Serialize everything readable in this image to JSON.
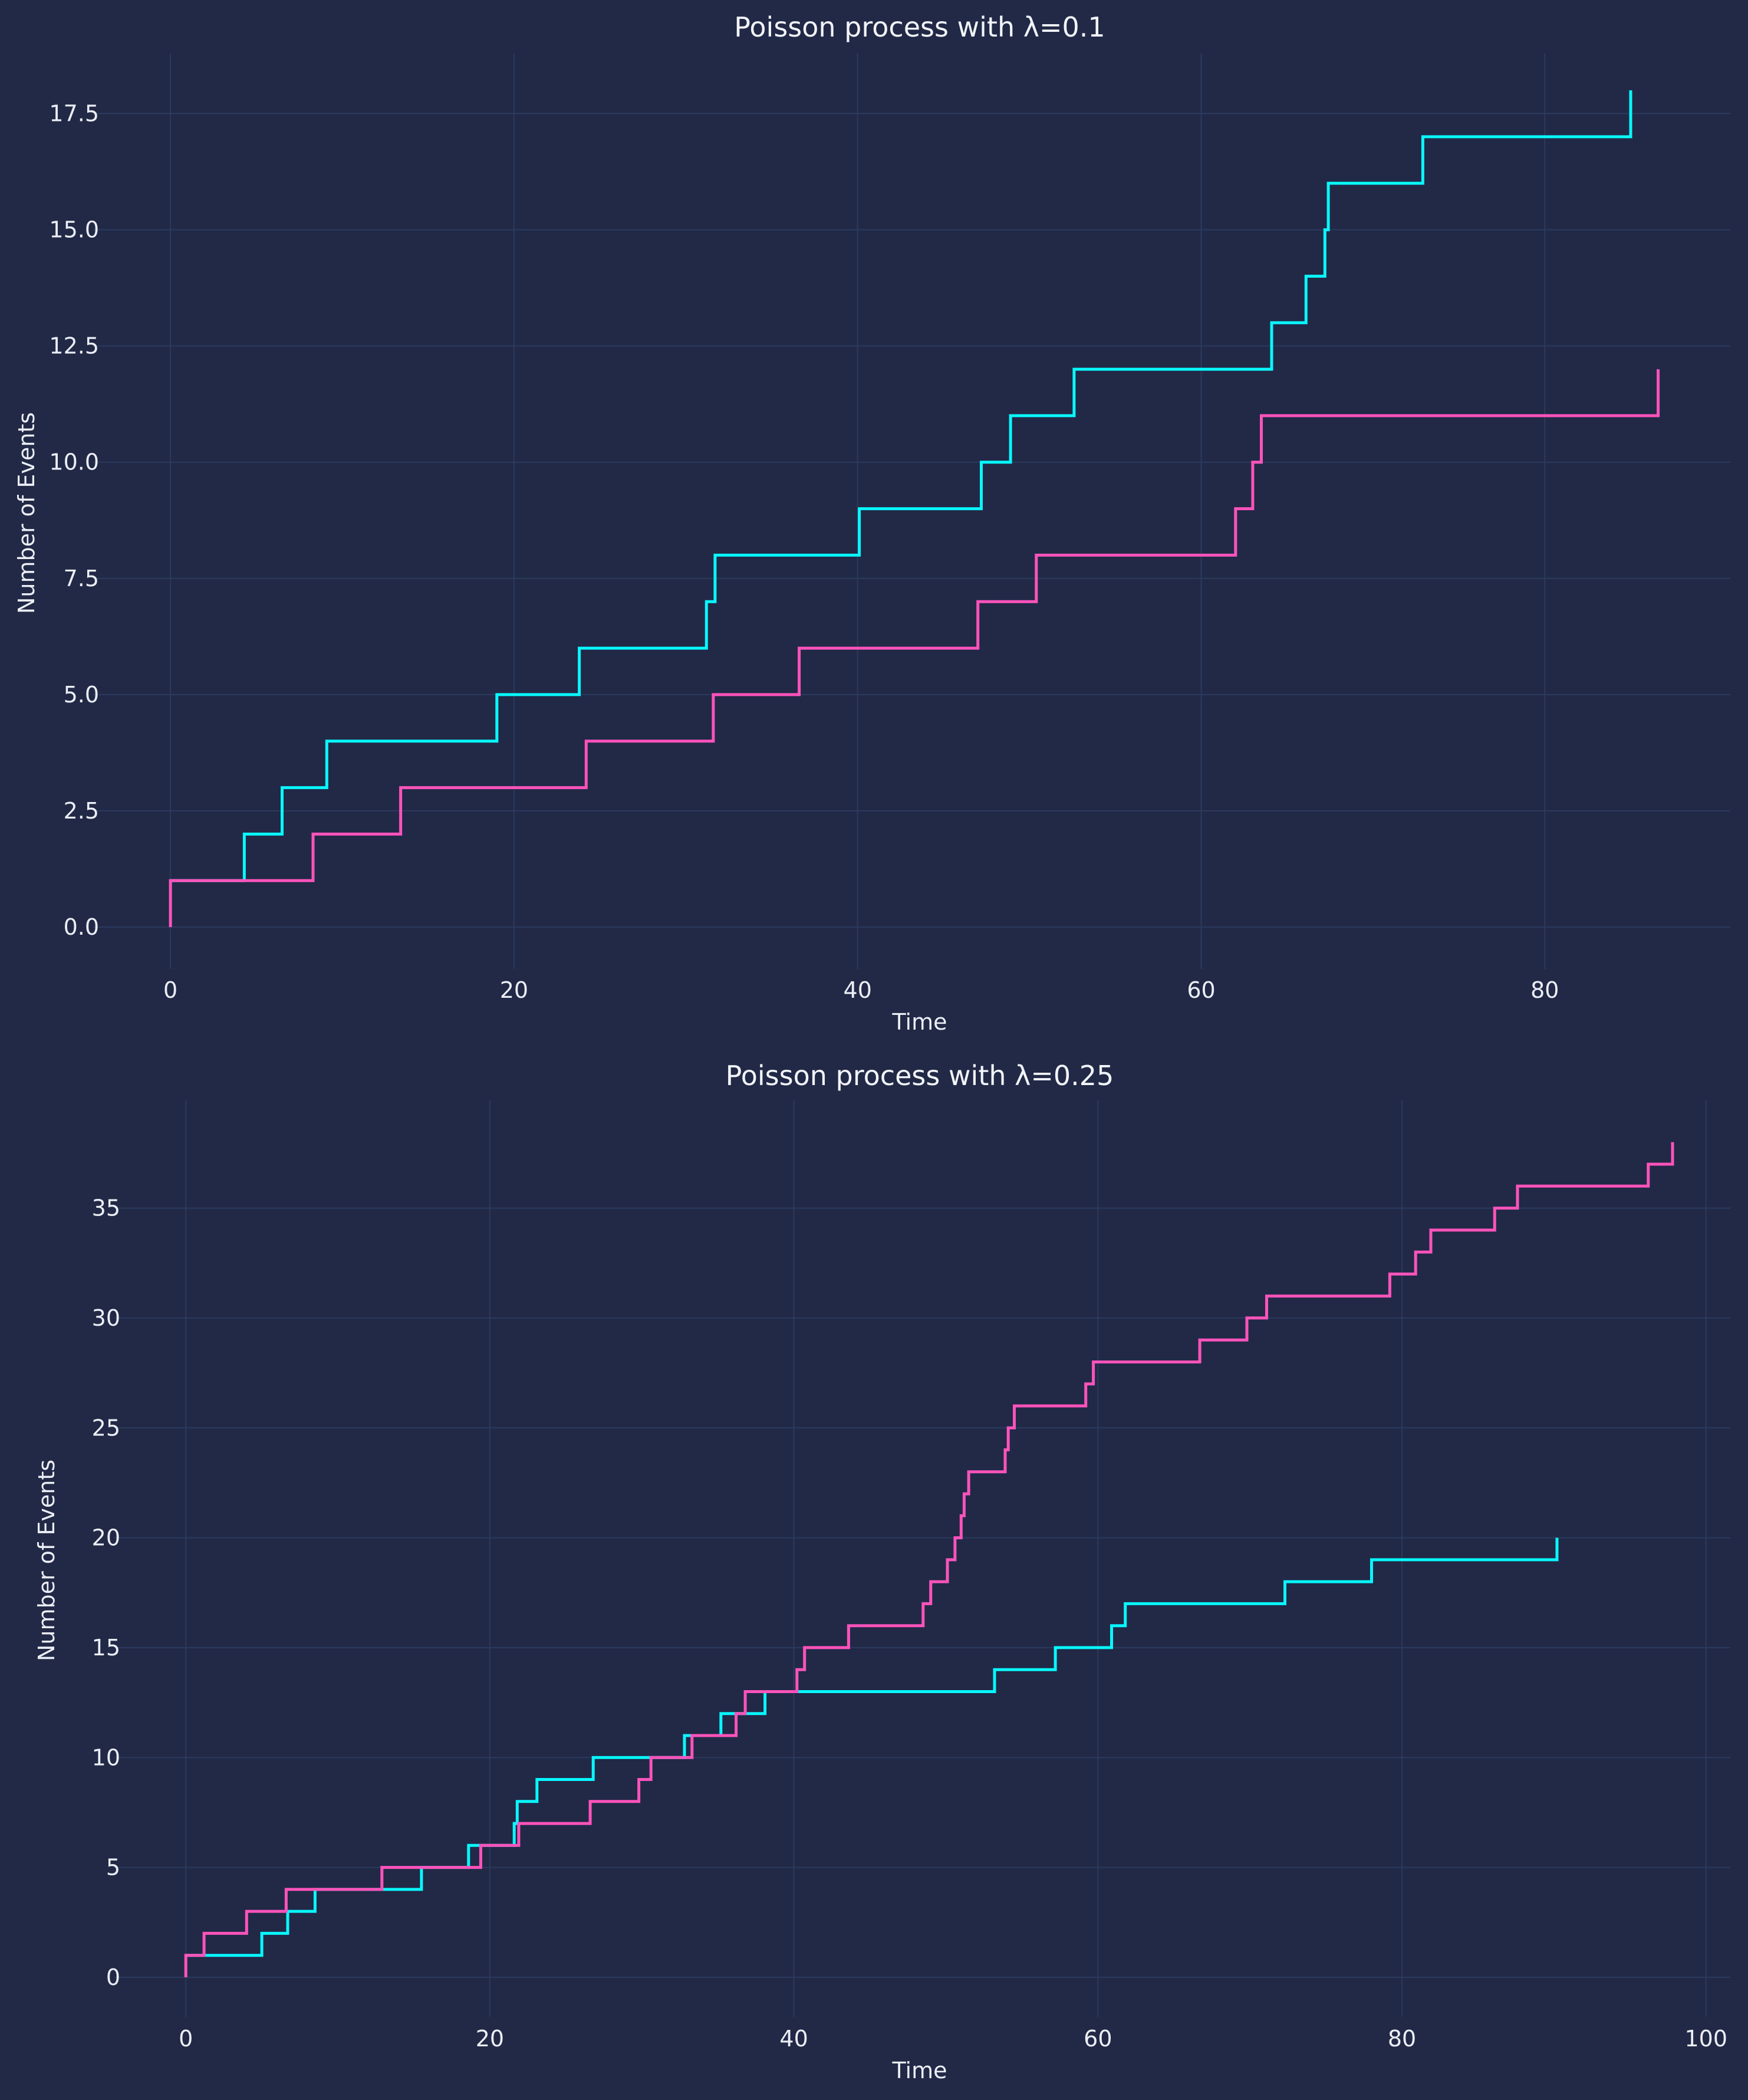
{
  "colors": {
    "background": "#212946",
    "grid": "#2b3a5f",
    "text": "#eceef6",
    "cyan": "#08F7FE",
    "magenta": "#FE53BB"
  },
  "chart_data": [
    {
      "type": "line",
      "step": "post",
      "title": "Poisson process with λ=0.1",
      "xlabel": "Time",
      "ylabel": "Number of Events",
      "xlim": [
        -4.5,
        90.8
      ],
      "ylim": [
        -0.9,
        18.8
      ],
      "xticks": [
        0,
        20,
        40,
        60,
        80
      ],
      "xtick_labels": [
        "0",
        "20",
        "40",
        "60",
        "80"
      ],
      "yticks": [
        0,
        2.5,
        5,
        7.5,
        10,
        12.5,
        15,
        17.5
      ],
      "ytick_labels": [
        "0.0",
        "2.5",
        "5.0",
        "7.5",
        "10.0",
        "12.5",
        "15.0",
        "17.5"
      ],
      "grid": true,
      "series": [
        {
          "color": "cyan",
          "x": [
            0,
            4.3,
            6.5,
            9.1,
            19,
            23.8,
            31.2,
            31.7,
            40.1,
            47.2,
            48.9,
            52.6,
            64.1,
            66.1,
            67.2,
            67.4,
            72.9,
            85
          ],
          "y": [
            1,
            2,
            3,
            4,
            5,
            6,
            7,
            8,
            9,
            10,
            11,
            12,
            13,
            14,
            15,
            16,
            17,
            18
          ]
        },
        {
          "color": "magenta",
          "x": [
            0,
            0,
            8.3,
            13.4,
            24.2,
            31.6,
            36.6,
            47,
            50.4,
            62,
            63,
            63.5,
            86.6
          ],
          "y": [
            0,
            1,
            2,
            3,
            4,
            5,
            6,
            7,
            8,
            9,
            10,
            11,
            12
          ]
        }
      ]
    },
    {
      "type": "line",
      "step": "post",
      "title": "Poisson process with λ=0.25",
      "xlabel": "Time",
      "ylabel": "Number of Events",
      "xlim": [
        -4.7,
        101.6
      ],
      "ylim": [
        -1.8,
        39.9
      ],
      "xticks": [
        0,
        20,
        40,
        60,
        80,
        100
      ],
      "xtick_labels": [
        "0",
        "20",
        "40",
        "60",
        "80",
        "100"
      ],
      "yticks": [
        0,
        5,
        10,
        15,
        20,
        25,
        30,
        35
      ],
      "ytick_labels": [
        "0",
        "5",
        "10",
        "15",
        "20",
        "25",
        "30",
        "35"
      ],
      "grid": true,
      "series": [
        {
          "color": "cyan",
          "x": [
            0,
            5,
            6.7,
            8.5,
            15.5,
            18.6,
            21.6,
            21.8,
            23.1,
            26.8,
            32.8,
            35.2,
            38.1,
            53.2,
            57.2,
            60.9,
            61.8,
            72.3,
            78,
            90.2
          ],
          "y": [
            1,
            2,
            3,
            4,
            5,
            6,
            7,
            8,
            9,
            10,
            11,
            12,
            13,
            14,
            15,
            16,
            17,
            18,
            19,
            20
          ]
        },
        {
          "color": "magenta",
          "x": [
            0,
            0,
            1.2,
            4,
            6.6,
            12.9,
            19.4,
            21.9,
            26.6,
            29.8,
            30.6,
            33.3,
            36.2,
            36.8,
            40.2,
            40.7,
            43.6,
            48.5,
            49,
            50.1,
            50.6,
            51,
            51.2,
            51.5,
            51.7,
            53.9,
            54.1,
            54.5,
            59.2,
            59.7,
            66.7,
            69.8,
            71.1,
            79.2,
            80.9,
            81.9,
            86.1,
            87.6,
            96.2,
            97.8
          ],
          "y": [
            0,
            1,
            2,
            3,
            4,
            5,
            6,
            7,
            8,
            9,
            10,
            11,
            12,
            13,
            14,
            15,
            16,
            17,
            18,
            19,
            20,
            21,
            22,
            23,
            23,
            24,
            25,
            26,
            27,
            28,
            29,
            30,
            31,
            32,
            33,
            34,
            35,
            36,
            37,
            38
          ]
        }
      ]
    }
  ]
}
